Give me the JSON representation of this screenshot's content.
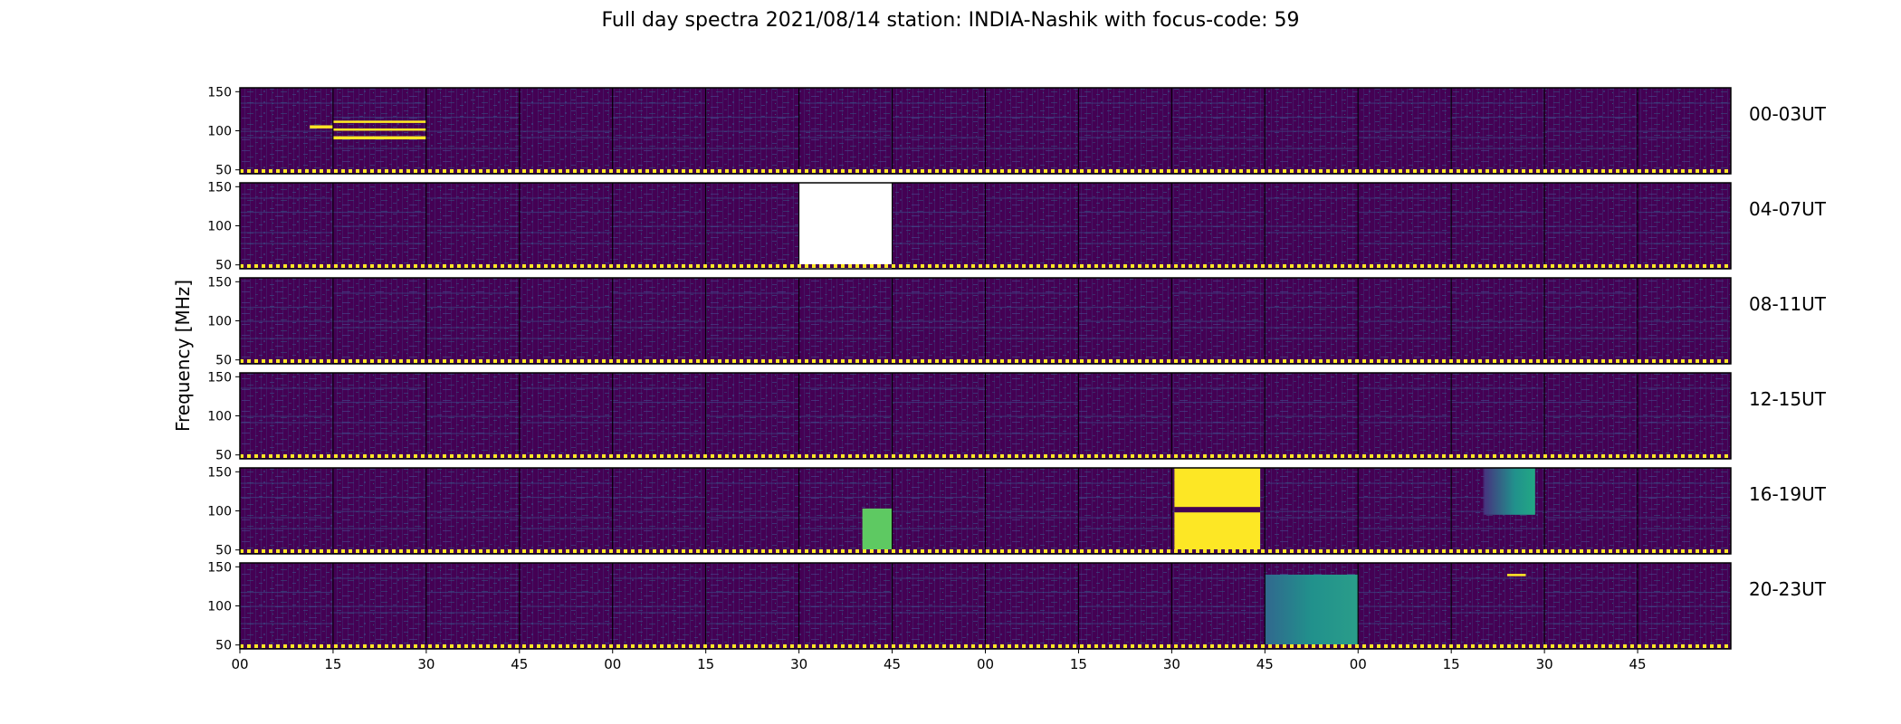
{
  "chart_data": {
    "type": "heatmap",
    "title": "Full day spectra 2021/08/14 station: INDIA-Nashik with focus-code: 59",
    "ylabel": "Frequency [MHz]",
    "y_ticks": [
      50,
      100,
      150
    ],
    "ylim": [
      45,
      155
    ],
    "x_ticks": [
      "00",
      "15",
      "30",
      "45",
      "00",
      "15",
      "30",
      "45",
      "00",
      "15",
      "30",
      "45",
      "00",
      "15",
      "30",
      "45"
    ],
    "colormap": "viridis",
    "colors": {
      "background": "#440154",
      "noise_light": "#3b528b",
      "mid": "#21918c",
      "green": "#5ec962",
      "high": "#fde725",
      "missing": "#ffffff"
    },
    "rows": [
      {
        "label": "00-03UT"
      },
      {
        "label": "04-07UT"
      },
      {
        "label": "08-11UT"
      },
      {
        "label": "12-15UT"
      },
      {
        "label": "16-19UT"
      },
      {
        "label": "20-23UT"
      }
    ],
    "panels_per_row": 16,
    "panel_duration_min": 15,
    "missing_panels": [
      {
        "row": "04-07UT",
        "panel": 6
      }
    ],
    "strong_events": [
      {
        "row": "00-03UT",
        "panel": 0,
        "type": "narrowband",
        "freq_mhz": [
          103,
          107
        ],
        "intensity": "high"
      },
      {
        "row": "00-03UT",
        "panel": 1,
        "type": "narrowband",
        "freq_mhz": [
          110,
          113
        ],
        "intensity": "high"
      },
      {
        "row": "00-03UT",
        "panel": 1,
        "type": "narrowband",
        "freq_mhz": [
          100,
          103
        ],
        "intensity": "high"
      },
      {
        "row": "00-03UT",
        "panel": 1,
        "type": "narrowband",
        "freq_mhz": [
          89,
          93
        ],
        "intensity": "high"
      },
      {
        "row": "16-19UT",
        "panel": 6,
        "type": "broadband",
        "freq_mhz": [
          50,
          103
        ],
        "intensity": "green"
      },
      {
        "row": "16-19UT",
        "panel": 10,
        "type": "saturation",
        "freq_mhz": [
          48,
          155
        ],
        "intensity": "high"
      },
      {
        "row": "16-19UT",
        "panel": 13,
        "type": "broadband",
        "freq_mhz": [
          95,
          155
        ],
        "intensity": "mid"
      },
      {
        "row": "20-23UT",
        "panel": 11,
        "type": "broadband",
        "freq_mhz": [
          50,
          140
        ],
        "intensity": "mid"
      },
      {
        "row": "20-23UT",
        "panel": 13,
        "type": "narrowband",
        "freq_mhz": [
          138,
          141
        ],
        "intensity": "high"
      }
    ]
  }
}
